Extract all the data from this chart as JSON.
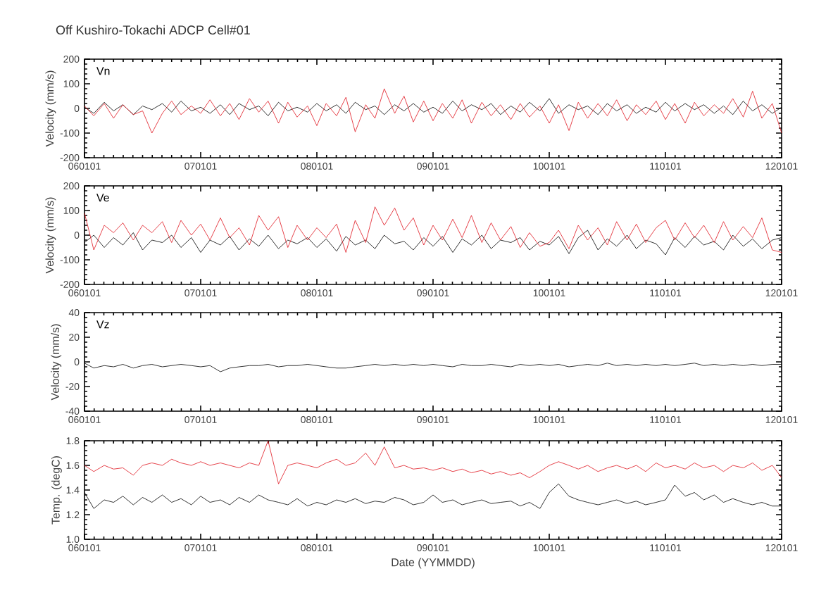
{
  "chart_data": [
    {
      "type": "line",
      "title": "Off Kushiro-Tokachi ADCP Cell#01",
      "ylabel": "Velocity (mm/s)",
      "annotations": [
        "Vn"
      ],
      "x": [
        "2006-01",
        "2006-02",
        "2006-03",
        "2006-04",
        "2006-05",
        "2006-06",
        "2006-07",
        "2006-08",
        "2006-09",
        "2006-10",
        "2006-11",
        "2006-12",
        "2007-01",
        "2007-02",
        "2007-03",
        "2007-04",
        "2007-05",
        "2007-06",
        "2007-07",
        "2007-08",
        "2007-09",
        "2007-10",
        "2007-11",
        "2007-12",
        "2008-01",
        "2008-02",
        "2008-03",
        "2008-04",
        "2008-05",
        "2008-06",
        "2008-07",
        "2008-08",
        "2008-09",
        "2008-10",
        "2008-11",
        "2008-12",
        "2009-01",
        "2009-02",
        "2009-03",
        "2009-04",
        "2009-05",
        "2009-06",
        "2009-07",
        "2009-08",
        "2009-09",
        "2009-10",
        "2009-11",
        "2009-12",
        "2010-01",
        "2010-02",
        "2010-03",
        "2010-04",
        "2010-05",
        "2010-06",
        "2010-07",
        "2010-08",
        "2010-09",
        "2010-10",
        "2010-11",
        "2010-12",
        "2011-01",
        "2011-02",
        "2011-03",
        "2011-04",
        "2011-05",
        "2011-06",
        "2011-07",
        "2011-08",
        "2011-09",
        "2011-10",
        "2011-11",
        "2011-12",
        "2012-01"
      ],
      "series": [
        {
          "color": "#000000",
          "values": [
            5,
            -20,
            25,
            -10,
            15,
            -25,
            10,
            -5,
            20,
            -15,
            30,
            -10,
            5,
            -20,
            15,
            -25,
            20,
            -5,
            10,
            -30,
            25,
            -10,
            5,
            -15,
            20,
            -10,
            15,
            -20,
            25,
            -5,
            10,
            -25,
            15,
            -10,
            20,
            -15,
            5,
            -20,
            30,
            -10,
            15,
            -5,
            20,
            -25,
            10,
            -15,
            25,
            -10,
            40,
            -20,
            15,
            -5,
            10,
            -25,
            20,
            -10,
            15,
            -20,
            5,
            -15,
            25,
            -10,
            20,
            -5,
            15,
            -20,
            10,
            -25,
            30,
            -10,
            15,
            -20,
            5
          ]
        },
        {
          "color": "#e0141e",
          "values": [
            10,
            -30,
            20,
            -40,
            15,
            -25,
            -10,
            -100,
            -20,
            30,
            -25,
            10,
            -20,
            35,
            -30,
            20,
            -45,
            40,
            -15,
            30,
            -60,
            25,
            -35,
            10,
            -70,
            20,
            -30,
            45,
            -95,
            15,
            -40,
            80,
            -20,
            50,
            -55,
            30,
            -50,
            20,
            -40,
            35,
            -60,
            25,
            -30,
            15,
            -45,
            20,
            -35,
            10,
            -60,
            15,
            -90,
            25,
            -40,
            20,
            -30,
            35,
            -50,
            15,
            -25,
            30,
            -45,
            20,
            -60,
            25,
            -30,
            15,
            -20,
            40,
            -35,
            70,
            -40,
            20,
            -100
          ]
        }
      ],
      "xlim": [
        "2006-01-01",
        "2012-01-01"
      ],
      "xticks": [
        {
          "value": "2006-01-01",
          "label": "060101"
        },
        {
          "value": "2007-01-01",
          "label": "070101"
        },
        {
          "value": "2008-01-01",
          "label": "080101"
        },
        {
          "value": "2009-01-01",
          "label": "090101"
        },
        {
          "value": "2010-01-01",
          "label": "100101"
        },
        {
          "value": "2011-01-01",
          "label": "110101"
        },
        {
          "value": "2012-01-01",
          "label": "120101"
        }
      ],
      "ylim": [
        -200,
        200
      ],
      "yticks": [
        -200,
        -100,
        0,
        100,
        200
      ]
    },
    {
      "type": "line",
      "ylabel": "Velocity (mm/s)",
      "annotations": [
        "Ve"
      ],
      "x": [
        "2006-01",
        "2006-02",
        "2006-03",
        "2006-04",
        "2006-05",
        "2006-06",
        "2006-07",
        "2006-08",
        "2006-09",
        "2006-10",
        "2006-11",
        "2006-12",
        "2007-01",
        "2007-02",
        "2007-03",
        "2007-04",
        "2007-05",
        "2007-06",
        "2007-07",
        "2007-08",
        "2007-09",
        "2007-10",
        "2007-11",
        "2007-12",
        "2008-01",
        "2008-02",
        "2008-03",
        "2008-04",
        "2008-05",
        "2008-06",
        "2008-07",
        "2008-08",
        "2008-09",
        "2008-10",
        "2008-11",
        "2008-12",
        "2009-01",
        "2009-02",
        "2009-03",
        "2009-04",
        "2009-05",
        "2009-06",
        "2009-07",
        "2009-08",
        "2009-09",
        "2009-10",
        "2009-11",
        "2009-12",
        "2010-01",
        "2010-02",
        "2010-03",
        "2010-04",
        "2010-05",
        "2010-06",
        "2010-07",
        "2010-08",
        "2010-09",
        "2010-10",
        "2010-11",
        "2010-12",
        "2011-01",
        "2011-02",
        "2011-03",
        "2011-04",
        "2011-05",
        "2011-06",
        "2011-07",
        "2011-08",
        "2011-09",
        "2011-10",
        "2011-11",
        "2011-12",
        "2012-01"
      ],
      "series": [
        {
          "color": "#000000",
          "values": [
            -30,
            0,
            -50,
            -10,
            -40,
            10,
            -60,
            -20,
            -30,
            0,
            -50,
            -10,
            -70,
            -20,
            -40,
            -5,
            -60,
            -15,
            -45,
            0,
            -55,
            -20,
            -35,
            -10,
            -50,
            -15,
            -65,
            -5,
            -40,
            -20,
            -55,
            0,
            -35,
            -25,
            -60,
            -10,
            -45,
            -5,
            -70,
            -15,
            -40,
            0,
            -55,
            -20,
            -30,
            -10,
            -60,
            -25,
            -40,
            -5,
            -75,
            -10,
            20,
            -60,
            -15,
            -45,
            0,
            -55,
            -20,
            -35,
            -80,
            -10,
            -50,
            -5,
            -40,
            -25,
            -60,
            0,
            -45,
            -15,
            -55,
            -20,
            -10
          ]
        },
        {
          "color": "#e0141e",
          "values": [
            90,
            -60,
            40,
            10,
            50,
            -20,
            40,
            10,
            55,
            -30,
            60,
            0,
            45,
            -20,
            70,
            -10,
            30,
            -40,
            80,
            20,
            75,
            -50,
            40,
            -20,
            30,
            -10,
            45,
            -70,
            60,
            -30,
            115,
            40,
            110,
            20,
            70,
            -40,
            40,
            -20,
            65,
            -10,
            80,
            -30,
            50,
            -20,
            35,
            -50,
            10,
            -45,
            -30,
            20,
            -55,
            40,
            -20,
            30,
            -40,
            55,
            -20,
            45,
            -30,
            30,
            60,
            -20,
            50,
            -10,
            40,
            -30,
            55,
            -20,
            35,
            -10,
            70,
            -60,
            -70
          ]
        }
      ],
      "xlim": [
        "2006-01-01",
        "2012-01-01"
      ],
      "xticks": [
        {
          "value": "2006-01-01",
          "label": "060101"
        },
        {
          "value": "2007-01-01",
          "label": "070101"
        },
        {
          "value": "2008-01-01",
          "label": "080101"
        },
        {
          "value": "2009-01-01",
          "label": "090101"
        },
        {
          "value": "2010-01-01",
          "label": "100101"
        },
        {
          "value": "2011-01-01",
          "label": "110101"
        },
        {
          "value": "2012-01-01",
          "label": "120101"
        }
      ],
      "ylim": [
        -200,
        200
      ],
      "yticks": [
        -200,
        -100,
        0,
        100,
        200
      ]
    },
    {
      "type": "line",
      "ylabel": "Velocity (mm/s)",
      "annotations": [
        "Vz"
      ],
      "x": [
        "2006-01",
        "2006-02",
        "2006-03",
        "2006-04",
        "2006-05",
        "2006-06",
        "2006-07",
        "2006-08",
        "2006-09",
        "2006-10",
        "2006-11",
        "2006-12",
        "2007-01",
        "2007-02",
        "2007-03",
        "2007-04",
        "2007-05",
        "2007-06",
        "2007-07",
        "2007-08",
        "2007-09",
        "2007-10",
        "2007-11",
        "2007-12",
        "2008-01",
        "2008-02",
        "2008-03",
        "2008-04",
        "2008-05",
        "2008-06",
        "2008-07",
        "2008-08",
        "2008-09",
        "2008-10",
        "2008-11",
        "2008-12",
        "2009-01",
        "2009-02",
        "2009-03",
        "2009-04",
        "2009-05",
        "2009-06",
        "2009-07",
        "2009-08",
        "2009-09",
        "2009-10",
        "2009-11",
        "2009-12",
        "2010-01",
        "2010-02",
        "2010-03",
        "2010-04",
        "2010-05",
        "2010-06",
        "2010-07",
        "2010-08",
        "2010-09",
        "2010-10",
        "2010-11",
        "2010-12",
        "2011-01",
        "2011-02",
        "2011-03",
        "2011-04",
        "2011-05",
        "2011-06",
        "2011-07",
        "2011-08",
        "2011-09",
        "2011-10",
        "2011-11",
        "2011-12",
        "2012-01"
      ],
      "series": [
        {
          "color": "#000000",
          "values": [
            -1,
            -5,
            -3,
            -4,
            -2,
            -5,
            -3,
            -2,
            -4,
            -3,
            -2,
            -3,
            -4,
            -3,
            -8,
            -5,
            -4,
            -3,
            -3,
            -2,
            -4,
            -3,
            -3,
            -2,
            -3,
            -4,
            -5,
            -5,
            -4,
            -3,
            -2,
            -3,
            -2,
            -3,
            -2,
            -3,
            -2,
            -3,
            -4,
            -2,
            -3,
            -3,
            -2,
            -3,
            -4,
            -2,
            -3,
            -2,
            -3,
            -2,
            -4,
            -3,
            -2,
            -3,
            -1,
            -3,
            -2,
            -3,
            -2,
            -3,
            -2,
            -3,
            -2,
            -1,
            -3,
            -2,
            -3,
            -2,
            -3,
            -2,
            -3,
            -2,
            -2
          ]
        }
      ],
      "xlim": [
        "2006-01-01",
        "2012-01-01"
      ],
      "xticks": [
        {
          "value": "2006-01-01",
          "label": "060101"
        },
        {
          "value": "2007-01-01",
          "label": "070101"
        },
        {
          "value": "2008-01-01",
          "label": "080101"
        },
        {
          "value": "2009-01-01",
          "label": "090101"
        },
        {
          "value": "2010-01-01",
          "label": "100101"
        },
        {
          "value": "2011-01-01",
          "label": "110101"
        },
        {
          "value": "2012-01-01",
          "label": "120101"
        }
      ],
      "ylim": [
        -40,
        40
      ],
      "yticks": [
        -40,
        -20,
        0,
        20,
        40
      ]
    },
    {
      "type": "line",
      "ylabel": "Temp. (degC)",
      "xlabel": "Date (YYMMDD)",
      "x": [
        "2006-01",
        "2006-02",
        "2006-03",
        "2006-04",
        "2006-05",
        "2006-06",
        "2006-07",
        "2006-08",
        "2006-09",
        "2006-10",
        "2006-11",
        "2006-12",
        "2007-01",
        "2007-02",
        "2007-03",
        "2007-04",
        "2007-05",
        "2007-06",
        "2007-07",
        "2007-08",
        "2007-09",
        "2007-10",
        "2007-11",
        "2007-12",
        "2008-01",
        "2008-02",
        "2008-03",
        "2008-04",
        "2008-05",
        "2008-06",
        "2008-07",
        "2008-08",
        "2008-09",
        "2008-10",
        "2008-11",
        "2008-12",
        "2009-01",
        "2009-02",
        "2009-03",
        "2009-04",
        "2009-05",
        "2009-06",
        "2009-07",
        "2009-08",
        "2009-09",
        "2009-10",
        "2009-11",
        "2009-12",
        "2010-01",
        "2010-02",
        "2010-03",
        "2010-04",
        "2010-05",
        "2010-06",
        "2010-07",
        "2010-08",
        "2010-09",
        "2010-10",
        "2010-11",
        "2010-12",
        "2011-01",
        "2011-02",
        "2011-03",
        "2011-04",
        "2011-05",
        "2011-06",
        "2011-07",
        "2011-08",
        "2011-09",
        "2011-10",
        "2011-11",
        "2011-12",
        "2012-01"
      ],
      "series": [
        {
          "color": "#e0141e",
          "values": [
            1.6,
            1.55,
            1.6,
            1.57,
            1.58,
            1.52,
            1.6,
            1.62,
            1.6,
            1.65,
            1.62,
            1.6,
            1.63,
            1.6,
            1.62,
            1.6,
            1.58,
            1.62,
            1.6,
            1.8,
            1.45,
            1.6,
            1.62,
            1.6,
            1.58,
            1.62,
            1.65,
            1.6,
            1.62,
            1.7,
            1.6,
            1.75,
            1.58,
            1.6,
            1.57,
            1.58,
            1.56,
            1.58,
            1.55,
            1.57,
            1.54,
            1.56,
            1.53,
            1.55,
            1.52,
            1.54,
            1.5,
            1.55,
            1.6,
            1.63,
            1.6,
            1.57,
            1.6,
            1.55,
            1.58,
            1.6,
            1.57,
            1.6,
            1.55,
            1.62,
            1.58,
            1.6,
            1.57,
            1.62,
            1.58,
            1.6,
            1.55,
            1.6,
            1.58,
            1.62,
            1.56,
            1.6,
            1.5
          ]
        },
        {
          "color": "#000000",
          "values": [
            1.38,
            1.25,
            1.32,
            1.3,
            1.35,
            1.28,
            1.34,
            1.3,
            1.36,
            1.3,
            1.33,
            1.28,
            1.35,
            1.3,
            1.32,
            1.28,
            1.34,
            1.3,
            1.36,
            1.32,
            1.3,
            1.28,
            1.33,
            1.27,
            1.3,
            1.28,
            1.32,
            1.3,
            1.33,
            1.29,
            1.31,
            1.3,
            1.34,
            1.32,
            1.28,
            1.3,
            1.36,
            1.3,
            1.32,
            1.28,
            1.3,
            1.32,
            1.29,
            1.3,
            1.31,
            1.27,
            1.3,
            1.25,
            1.38,
            1.45,
            1.35,
            1.32,
            1.3,
            1.28,
            1.3,
            1.32,
            1.29,
            1.31,
            1.28,
            1.3,
            1.32,
            1.44,
            1.35,
            1.38,
            1.32,
            1.36,
            1.3,
            1.33,
            1.3,
            1.28,
            1.3,
            1.27,
            1.27
          ]
        }
      ],
      "xlim": [
        "2006-01-01",
        "2012-01-01"
      ],
      "xticks": [
        {
          "value": "2006-01-01",
          "label": "060101"
        },
        {
          "value": "2007-01-01",
          "label": "070101"
        },
        {
          "value": "2008-01-01",
          "label": "080101"
        },
        {
          "value": "2009-01-01",
          "label": "090101"
        },
        {
          "value": "2010-01-01",
          "label": "100101"
        },
        {
          "value": "2011-01-01",
          "label": "110101"
        },
        {
          "value": "2012-01-01",
          "label": "120101"
        }
      ],
      "ylim": [
        1.0,
        1.8
      ],
      "yticks": [
        {
          "value": 1.0,
          "label": "1.0"
        },
        1.2,
        1.4,
        1.6,
        1.8
      ]
    }
  ]
}
